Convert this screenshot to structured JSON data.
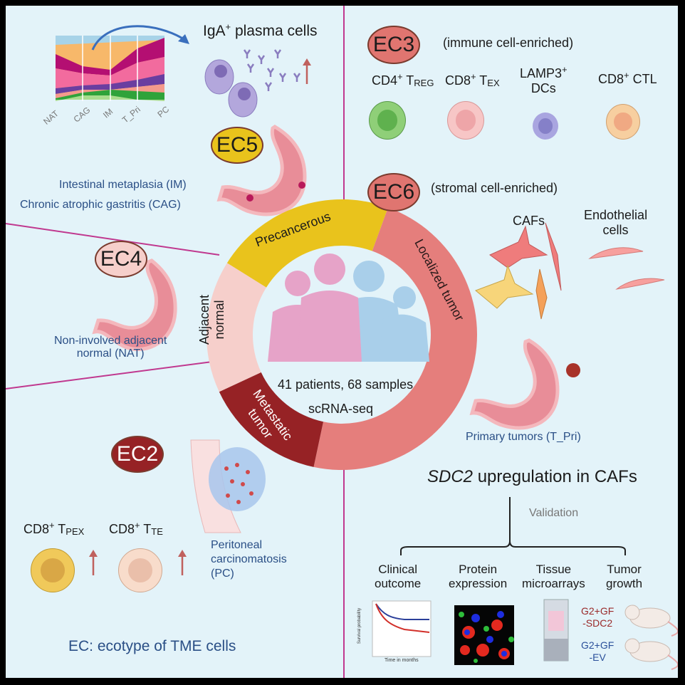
{
  "colors": {
    "background": "#e3f3f9",
    "divider": "#c0388f",
    "precancerous": "#e9c31c",
    "localized": "#e57e7c",
    "metastatic": "#962225",
    "adjacent": "#f6cfcb",
    "label_blue": "#2a4f86"
  },
  "top_left": {
    "stream_labels": [
      "NAT",
      "CAG",
      "IM",
      "T_Pri",
      "PC"
    ],
    "plasma_title": "IgA",
    "plasma_title_sup": "+",
    "plasma_title_rest": " plasma cells",
    "badge": "EC5",
    "im_label": "Intestinal metaplasia (IM)",
    "cag_label": "Chronic atrophic gastritis (CAG)"
  },
  "top_right": {
    "ec3_badge": "EC3",
    "ec3_desc": "(immune cell-enriched)",
    "cells": [
      {
        "main": "CD4",
        "sup": "+",
        "rest": " T",
        "sub": "REG"
      },
      {
        "main": "CD8",
        "sup": "+",
        "rest": " T",
        "sub": "EX"
      },
      {
        "main": "LAMP3",
        "sup": "+",
        "rest": "",
        "sub": "",
        "line2": "DCs"
      },
      {
        "main": "CD8",
        "sup": "+",
        "rest": " CTL",
        "sub": ""
      }
    ],
    "ec6_badge": "EC6",
    "ec6_desc": "(stromal cell-enriched)",
    "cafs": "CAFs",
    "endothelial": "Endothelial",
    "endothelial2": "cells",
    "primary": "Primary tumors (T_Pri)"
  },
  "left": {
    "ec4_badge": "EC4",
    "nat_label1": "Non-involved adjacent",
    "nat_label2": "normal (NAT)"
  },
  "ring": {
    "precancerous": "Precancerous",
    "localized": "Localized tumor",
    "metastatic1": "Metastatic",
    "metastatic2": "tumor",
    "adjacent1": "Adjacent",
    "adjacent2": "normal",
    "center1": "41 patients, 68 samples",
    "center2": "scRNA-seq"
  },
  "bottom_left": {
    "ec2_badge": "EC2",
    "cell1": {
      "main": "CD8",
      "sup": "+",
      "rest": " T",
      "sub": "PEX"
    },
    "cell2": {
      "main": "CD8",
      "sup": "+",
      "rest": " T",
      "sub": "TE"
    },
    "pc1": "Peritoneal",
    "pc2": "carcinomatosis",
    "pc3": "(PC)",
    "legend": "EC: ecotype of TME cells"
  },
  "bottom_right": {
    "sdc2_italic": "SDC2",
    "sdc2_rest": " upregulation in CAFs",
    "validation": "Validation",
    "items": [
      [
        "Clinical",
        "outcome"
      ],
      [
        "Protein",
        "expression"
      ],
      [
        "Tissue",
        "microarrays"
      ],
      [
        "Tumor",
        "growth"
      ]
    ],
    "km_ylabel": "Survival probability",
    "km_xlabel": "Time in months",
    "mouse1a": "G2+GF",
    "mouse1b": "-SDC2",
    "mouse2a": "G2+GF",
    "mouse2b": "-EV"
  }
}
